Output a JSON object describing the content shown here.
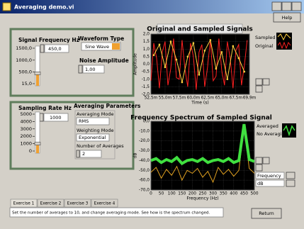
{
  "window": {
    "title": "Averaging demo.vi",
    "help": "Help",
    "return": "Return"
  },
  "signal": {
    "label": "Signal Frequency Hz",
    "value": {
      "value": 450,
      "label": "450,0"
    },
    "min": 15,
    "max": 1500,
    "ticks": [
      {
        "value": 1500,
        "label": "1500,0"
      },
      {
        "value": 1000,
        "label": "1000,0"
      },
      {
        "value": 500,
        "label": "500,0"
      },
      {
        "value": 15,
        "label": "15,0"
      }
    ],
    "waveform_label": "Waveform Type",
    "waveform": "Sine Wave",
    "noise_label": "Noise Amplitude",
    "noise": {
      "value": 1,
      "label": "1,00"
    }
  },
  "sampling": {
    "label": "Sampling Rate Hz",
    "value": 1000,
    "min": 0,
    "max": 5000,
    "ticks": [
      5000,
      4000,
      3000,
      2000,
      1000,
      0
    ],
    "averaging_title": "Averaging Parameters",
    "mode_label": "Averaging Mode",
    "mode": "RMS",
    "weighting_label": "Weighting Mode",
    "weighting": "Exponential",
    "count_label": "Number of Averages",
    "count": 2
  },
  "time_graph": {
    "title": "Original and Sampled Signals",
    "x_label": "Time (s)",
    "y_label": "Amplitude",
    "xlim": [
      0.0525,
      0.0699
    ],
    "xticks": [
      {
        "value": 0.0525,
        "label": "52,5m"
      },
      {
        "value": 0.055,
        "label": "55,0m"
      },
      {
        "value": 0.0575,
        "label": "57,5m"
      },
      {
        "value": 0.06,
        "label": "60,0m"
      },
      {
        "value": 0.0625,
        "label": "62,5m"
      },
      {
        "value": 0.065,
        "label": "65,0m"
      },
      {
        "value": 0.0675,
        "label": "67,5m"
      },
      {
        "value": 0.0699,
        "label": "69,9m"
      }
    ],
    "ylim": [
      -2,
      2
    ],
    "yticks": [
      {
        "value": 2,
        "label": "2,0"
      },
      {
        "value": 1.5,
        "label": "1,5"
      },
      {
        "value": 1,
        "label": "1,0"
      },
      {
        "value": 0.5,
        "label": "0,5"
      },
      {
        "value": 0,
        "label": "0,0"
      },
      {
        "value": -0.5,
        "label": "-0,5"
      },
      {
        "value": -1,
        "label": "-1,0"
      },
      {
        "value": -1.5,
        "label": "-1,5"
      },
      {
        "value": -2,
        "label": "-2,0"
      }
    ],
    "series": [
      {
        "name": "Original",
        "color": "#ff2020",
        "width": 1,
        "x": [
          0.0525,
          0.053,
          0.0535,
          0.054,
          0.0545,
          0.055,
          0.0555,
          0.056,
          0.0565,
          0.057,
          0.0575,
          0.058,
          0.0585,
          0.059,
          0.0595,
          0.06,
          0.0605,
          0.061,
          0.0615,
          0.062,
          0.0625,
          0.063,
          0.0635,
          0.064,
          0.0645,
          0.065,
          0.0655,
          0.066,
          0.0665,
          0.067,
          0.0675,
          0.068,
          0.0685,
          0.069,
          0.0695
        ],
        "values": [
          -1.1,
          1.4,
          0.4,
          -1.6,
          0.8,
          1.5,
          -1.4,
          -0.3,
          1.7,
          -0.9,
          -1.0,
          1.6,
          -0.3,
          -1.5,
          1.4,
          0.5,
          -1.7,
          0.8,
          1.3,
          -1.5,
          -0.2,
          1.6,
          -1.1,
          -0.8,
          1.7,
          -0.4,
          -1.4,
          1.5,
          0.4,
          -1.6,
          0.9,
          1.3,
          -1.4,
          -0.1,
          1.6
        ]
      },
      {
        "name": "Sampled",
        "color": "#ffd040",
        "width": 1,
        "x": [
          0.053,
          0.054,
          0.055,
          0.056,
          0.057,
          0.058,
          0.059,
          0.06,
          0.061,
          0.062,
          0.063,
          0.064,
          0.065,
          0.066,
          0.067,
          0.068,
          0.069
        ],
        "values": [
          0.6,
          1.3,
          -0.2,
          1.5,
          0.3,
          -1.2,
          0.5,
          1.4,
          -0.7,
          0.9,
          1.6,
          -0.3,
          0.8,
          -1.0,
          1.2,
          0.4,
          -0.5
        ]
      }
    ]
  },
  "spectrum_graph": {
    "title": "Frequency Spectrum of Sampled Signal",
    "x_label": "Frequency (Hz)",
    "y_label": "dB",
    "xlim": [
      0,
      500
    ],
    "xticks": [
      0,
      50,
      100,
      150,
      200,
      250,
      300,
      350,
      400,
      450,
      500
    ],
    "ylim": [
      -70,
      0
    ],
    "yticks": [
      {
        "value": 0,
        "label": "0,0"
      },
      {
        "value": -10,
        "label": "-10,0"
      },
      {
        "value": -20,
        "label": "-20,0"
      },
      {
        "value": -30,
        "label": "-30,0"
      },
      {
        "value": -40,
        "label": "-40,0"
      },
      {
        "value": -50,
        "label": "-50,0"
      },
      {
        "value": -60,
        "label": "-60,0"
      },
      {
        "value": -70,
        "label": "-70,0"
      }
    ],
    "series": [
      {
        "name": "No Averaging",
        "color": "#e0a020",
        "width": 1,
        "x": [
          0,
          25,
          50,
          75,
          100,
          125,
          150,
          175,
          200,
          225,
          250,
          275,
          300,
          325,
          350,
          375,
          400,
          425,
          450,
          475,
          500
        ],
        "values": [
          -52,
          -47,
          -58,
          -49,
          -55,
          -46,
          -60,
          -50,
          -53,
          -48,
          -57,
          -51,
          -62,
          -47,
          -54,
          -49,
          -56,
          -50,
          -5,
          -48,
          -53
        ]
      },
      {
        "name": "Averaged",
        "color": "#40e040",
        "width": 4,
        "x": [
          0,
          25,
          50,
          75,
          100,
          125,
          150,
          175,
          200,
          225,
          250,
          275,
          300,
          325,
          350,
          375,
          400,
          425,
          450,
          475,
          500
        ],
        "values": [
          -40,
          -38,
          -42,
          -39,
          -41,
          -37,
          -43,
          -40,
          -39,
          -41,
          -38,
          -42,
          -40,
          -39,
          -41,
          -38,
          -42,
          -40,
          -3,
          -39,
          -41
        ]
      }
    ],
    "scale_legend": [
      "Frequency",
      "dB"
    ]
  },
  "tabs": [
    "Exercise 1",
    "Exercise 2",
    "Exercise 3",
    "Exercise 4"
  ],
  "message": "Set the number of averages to 10, and change averaging mode. See how is the spectrum changed."
}
